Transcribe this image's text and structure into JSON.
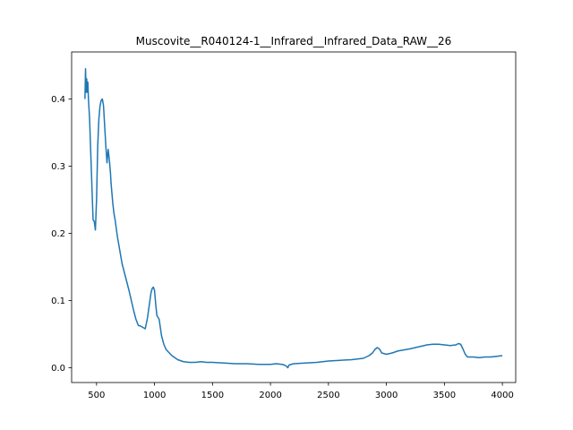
{
  "chart_data": {
    "type": "line",
    "title": "Muscovite__R040124-1__Infrared__Infrared_Data_RAW__26",
    "xlabel": "",
    "ylabel": "",
    "xlim": [
      285,
      4115
    ],
    "ylim": [
      -0.022,
      0.47
    ],
    "xticks": [
      500,
      1000,
      1500,
      2000,
      2500,
      3000,
      3500,
      4000
    ],
    "yticks": [
      0.0,
      0.1,
      0.2,
      0.3,
      0.4
    ],
    "xtick_labels": [
      "500",
      "1000",
      "1500",
      "2000",
      "2500",
      "3000",
      "3500",
      "4000"
    ],
    "ytick_labels": [
      "0.0",
      "0.1",
      "0.2",
      "0.3",
      "0.4"
    ],
    "grid": false,
    "series": [
      {
        "color": "#1f77b4",
        "x": [
          400,
          405,
          410,
          415,
          420,
          425,
          430,
          440,
          450,
          460,
          470,
          480,
          490,
          500,
          510,
          520,
          530,
          540,
          550,
          560,
          570,
          580,
          590,
          600,
          610,
          620,
          625,
          630,
          640,
          650,
          660,
          680,
          700,
          720,
          750,
          780,
          800,
          820,
          840,
          860,
          880,
          900,
          920,
          940,
          960,
          970,
          980,
          990,
          1000,
          1010,
          1020,
          1030,
          1040,
          1050,
          1060,
          1080,
          1100,
          1150,
          1200,
          1250,
          1300,
          1350,
          1400,
          1450,
          1500,
          1600,
          1700,
          1800,
          1900,
          2000,
          2050,
          2100,
          2120,
          2140,
          2150,
          2160,
          2200,
          2300,
          2400,
          2500,
          2600,
          2700,
          2750,
          2800,
          2850,
          2880,
          2900,
          2920,
          2940,
          2960,
          3000,
          3050,
          3100,
          3200,
          3300,
          3350,
          3400,
          3450,
          3500,
          3550,
          3600,
          3620,
          3640,
          3660,
          3680,
          3700,
          3750,
          3800,
          3850,
          3900,
          3950,
          4000
        ],
        "y": [
          0.4,
          0.445,
          0.41,
          0.43,
          0.41,
          0.425,
          0.4,
          0.37,
          0.32,
          0.27,
          0.22,
          0.218,
          0.205,
          0.25,
          0.33,
          0.37,
          0.39,
          0.398,
          0.4,
          0.39,
          0.36,
          0.33,
          0.305,
          0.325,
          0.31,
          0.29,
          0.275,
          0.265,
          0.245,
          0.23,
          0.22,
          0.195,
          0.175,
          0.155,
          0.135,
          0.115,
          0.1,
          0.085,
          0.072,
          0.063,
          0.062,
          0.06,
          0.058,
          0.075,
          0.1,
          0.112,
          0.118,
          0.12,
          0.115,
          0.095,
          0.078,
          0.075,
          0.072,
          0.06,
          0.048,
          0.035,
          0.027,
          0.018,
          0.012,
          0.009,
          0.008,
          0.008,
          0.009,
          0.008,
          0.008,
          0.007,
          0.006,
          0.006,
          0.005,
          0.005,
          0.006,
          0.005,
          0.004,
          0.002,
          0.0,
          0.004,
          0.006,
          0.007,
          0.008,
          0.01,
          0.011,
          0.012,
          0.013,
          0.014,
          0.018,
          0.022,
          0.027,
          0.03,
          0.028,
          0.022,
          0.02,
          0.022,
          0.025,
          0.028,
          0.032,
          0.034,
          0.035,
          0.035,
          0.034,
          0.033,
          0.034,
          0.036,
          0.035,
          0.028,
          0.02,
          0.016,
          0.016,
          0.015,
          0.016,
          0.016,
          0.017,
          0.018
        ]
      }
    ]
  }
}
